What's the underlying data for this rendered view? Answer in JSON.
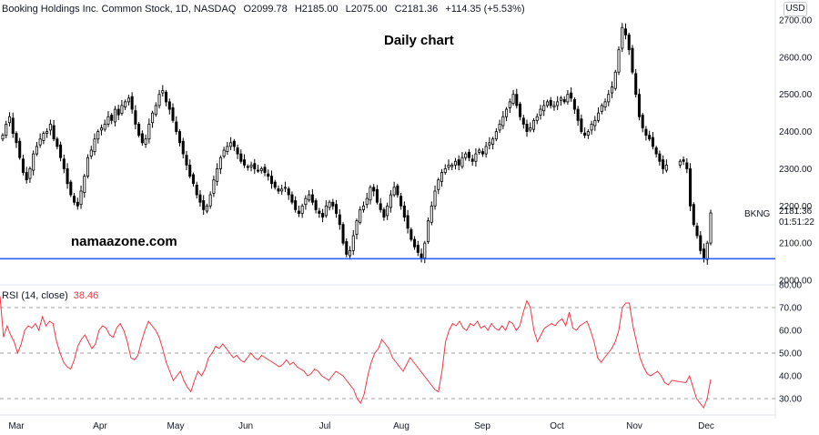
{
  "header": {
    "instrument": "Booking Holdings Inc. Common Stock, 1D, NASDAQ",
    "open": "O2099.78",
    "high": "H2185.00",
    "low": "L2075.00",
    "close": "C2181.36",
    "change": "+114.35 (+5.53%)"
  },
  "title": "Daily chart",
  "watermark": "namaazone.com",
  "currency": "USD",
  "symbol_label": "BKNG",
  "last_price": "2181.36",
  "countdown": "01:51:22",
  "rsi_label": "RSI (14, close)",
  "rsi_value": "38.46",
  "colors": {
    "up": "#ffffff",
    "down": "#000000",
    "support_line": "#2962ff",
    "rsi_line": "#f23645",
    "grid_dash": "#a0a0a0"
  },
  "chart_data": [
    {
      "type": "candlestick",
      "title": "Booking Holdings Inc. Common Stock, 1D, NASDAQ",
      "y_ticks": [
        "2000.00",
        "2100.00",
        "2200.00",
        "2300.00",
        "2400.00",
        "2500.00",
        "2600.00",
        "2700.00"
      ],
      "ylim": [
        2000,
        2730
      ],
      "x_ticks": [
        "Mar",
        "Apr",
        "May",
        "Jun",
        "Jul",
        "Aug",
        "Sep",
        "Oct",
        "Nov",
        "Dec"
      ],
      "support_level": 2058,
      "close": [
        2390,
        2420,
        2440,
        2395,
        2370,
        2330,
        2290,
        2270,
        2300,
        2340,
        2360,
        2380,
        2395,
        2400,
        2420,
        2380,
        2360,
        2330,
        2300,
        2260,
        2230,
        2210,
        2200,
        2240,
        2280,
        2330,
        2350,
        2380,
        2400,
        2410,
        2420,
        2440,
        2430,
        2460,
        2445,
        2470,
        2480,
        2490,
        2460,
        2420,
        2390,
        2370,
        2380,
        2420,
        2450,
        2470,
        2500,
        2510,
        2480,
        2460,
        2430,
        2400,
        2370,
        2340,
        2310,
        2280,
        2260,
        2230,
        2210,
        2190,
        2200,
        2230,
        2270,
        2300,
        2330,
        2350,
        2360,
        2370,
        2360,
        2340,
        2320,
        2310,
        2305,
        2310,
        2300,
        2295,
        2300,
        2290,
        2280,
        2260,
        2250,
        2240,
        2245,
        2250,
        2230,
        2210,
        2190,
        2180,
        2200,
        2220,
        2230,
        2210,
        2190,
        2180,
        2170,
        2200,
        2210,
        2200,
        2180,
        2150,
        2100,
        2070,
        2080,
        2120,
        2160,
        2190,
        2200,
        2220,
        2250,
        2240,
        2210,
        2190,
        2170,
        2200,
        2230,
        2250,
        2230,
        2200,
        2170,
        2140,
        2110,
        2090,
        2075,
        2060,
        2100,
        2160,
        2200,
        2240,
        2270,
        2290,
        2300,
        2310,
        2310,
        2320,
        2310,
        2330,
        2340,
        2330,
        2320,
        2340,
        2350,
        2340,
        2360,
        2370,
        2380,
        2400,
        2420,
        2440,
        2460,
        2480,
        2500,
        2470,
        2440,
        2420,
        2400,
        2410,
        2430,
        2440,
        2460,
        2470,
        2480,
        2470,
        2470,
        2480,
        2490,
        2480,
        2500,
        2490,
        2460,
        2430,
        2400,
        2390,
        2400,
        2420,
        2430,
        2450,
        2470,
        2480,
        2500,
        2520,
        2560,
        2620,
        2680,
        2660,
        2620,
        2560,
        2500,
        2440,
        2410,
        2390,
        2380,
        2360,
        2340,
        2320,
        2300,
        2310,
        2320,
        2320,
        2300,
        2200,
        2150,
        2120,
        2080,
        2060,
        2100,
        2181
      ],
      "rsi": {
        "ylim": [
          20,
          80
        ],
        "y_ticks": [
          "30.00",
          "40.00",
          "50.00",
          "60.00",
          "70.00",
          "80.00"
        ],
        "dashed_levels": [
          30,
          50,
          70
        ],
        "values": [
          75,
          57,
          62,
          58,
          55,
          50,
          54,
          60,
          62,
          61,
          63,
          60,
          66,
          62,
          64,
          63,
          55,
          50,
          46,
          44,
          43,
          47,
          53,
          56,
          58,
          55,
          52,
          54,
          60,
          62,
          61,
          58,
          57,
          61,
          63,
          60,
          55,
          48,
          47,
          49,
          55,
          60,
          64,
          62,
          60,
          57,
          52,
          46,
          42,
          38,
          40,
          42,
          38,
          35,
          33,
          38,
          42,
          40,
          43,
          48,
          50,
          53,
          52,
          54,
          52,
          50,
          48,
          49,
          47,
          46,
          48,
          50,
          48,
          47,
          49,
          48,
          47,
          46,
          45,
          44,
          45,
          47,
          45,
          46,
          44,
          43,
          42,
          40,
          41,
          43,
          42,
          40,
          39,
          38,
          40,
          42,
          41,
          40,
          38,
          36,
          34,
          30,
          28,
          32,
          40,
          46,
          50,
          52,
          56,
          54,
          52,
          48,
          46,
          44,
          42,
          45,
          48,
          46,
          44,
          42,
          40,
          38,
          36,
          34,
          33,
          42,
          55,
          60,
          63,
          62,
          64,
          61,
          60,
          63,
          62,
          64,
          61,
          62,
          60,
          63,
          61,
          60,
          62,
          60,
          64,
          63,
          60,
          62,
          68,
          73,
          70,
          60,
          55,
          58,
          61,
          62,
          63,
          62,
          64,
          65,
          62,
          68,
          61,
          60,
          62,
          63,
          64,
          60,
          55,
          48,
          46,
          48,
          50,
          52,
          55,
          60,
          70,
          72,
          72,
          62,
          55,
          48,
          44,
          41,
          40,
          41,
          42,
          40,
          37,
          36,
          38,
          37,
          40,
          35,
          30,
          28,
          26,
          30,
          38.46
        ]
      }
    }
  ]
}
